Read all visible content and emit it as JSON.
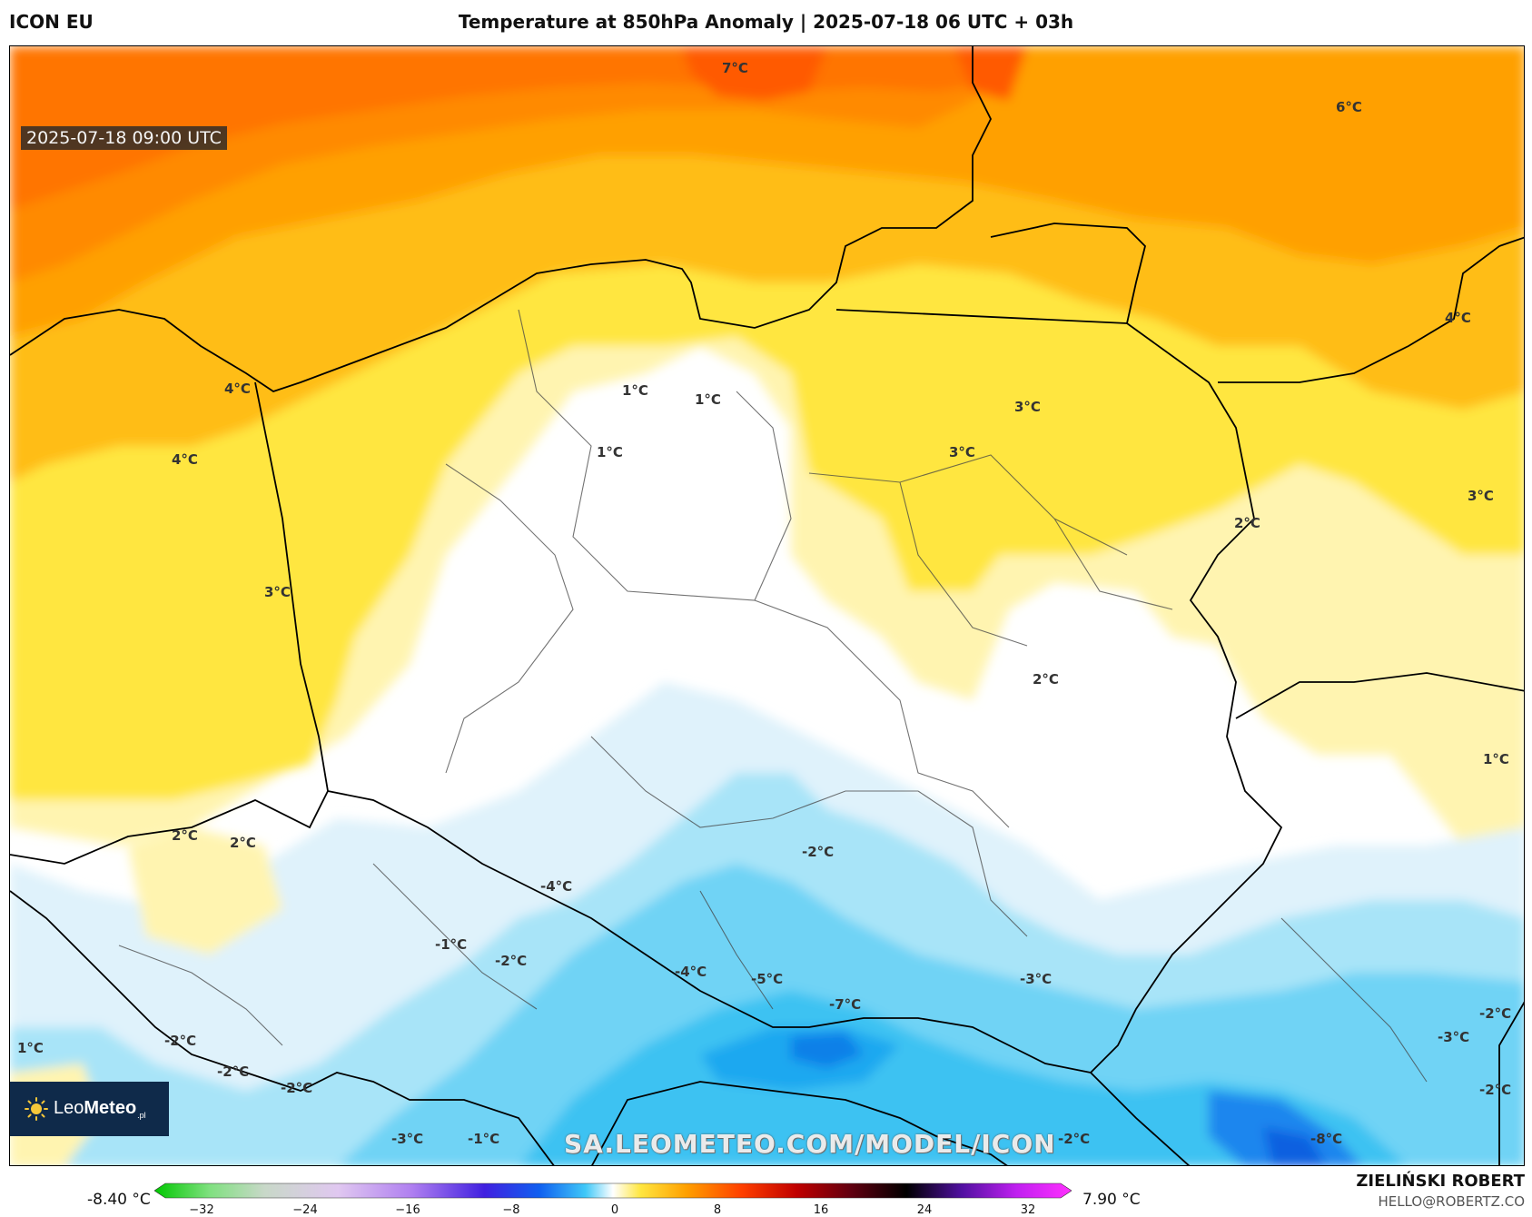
{
  "header": {
    "model": "ICON EU",
    "title": "Temperature at 850hPa Anomaly | 2025-07-18 06 UTC + 03h"
  },
  "map": {
    "valid_time": "2025-07-18 09:00 UTC",
    "watermark_url": "SA.LEOMETEO.COM/MODEL/ICON",
    "logo_text_plain": "Leo",
    "logo_text_bold": "Meteo",
    "logo_suffix": ".pl",
    "contour_labels": [
      {
        "text": "7°C"
      },
      {
        "text": "6°C"
      },
      {
        "text": "4°C"
      },
      {
        "text": "4°C"
      },
      {
        "text": "4°C"
      },
      {
        "text": "1°C"
      },
      {
        "text": "1°C"
      },
      {
        "text": "1°C"
      },
      {
        "text": "3°C"
      },
      {
        "text": "3°C"
      },
      {
        "text": "3°C"
      },
      {
        "text": "3°C"
      },
      {
        "text": "2°C"
      },
      {
        "text": "2°C"
      },
      {
        "text": "1°C"
      },
      {
        "text": "2°C"
      },
      {
        "text": "2°C"
      },
      {
        "text": "-2°C"
      },
      {
        "text": "-4°C"
      },
      {
        "text": "-1°C"
      },
      {
        "text": "-2°C"
      },
      {
        "text": "-4°C"
      },
      {
        "text": "-5°C"
      },
      {
        "text": "-7°C"
      },
      {
        "text": "-3°C"
      },
      {
        "text": "-2°C"
      },
      {
        "text": "-3°C"
      },
      {
        "text": "-2°C"
      },
      {
        "text": "1°C"
      },
      {
        "text": "-2°C"
      },
      {
        "text": "-2°C"
      },
      {
        "text": "-2°C"
      },
      {
        "text": "-3°C"
      },
      {
        "text": "-1°C"
      },
      {
        "text": "-2°C"
      },
      {
        "text": "-8°C"
      }
    ]
  },
  "colorbar": {
    "min_label": "-8.40 °C",
    "max_label": "7.90 °C",
    "ticks": [
      "−32",
      "−24",
      "−16",
      "−8",
      "0",
      "8",
      "16",
      "24",
      "32"
    ]
  },
  "footer": {
    "author": "ZIELIŃSKI ROBERT",
    "email": "HELLO@ROBERTZ.CO"
  },
  "colors": {
    "warm_max": "#ff6a00",
    "warm_mid": "#ffa800",
    "warm_low": "#ffe640",
    "pale_yellow": "#fff4b0",
    "neutral": "#ffffff",
    "cool_light": "#dff2fb",
    "cool_mid": "#6fd3f5",
    "cool_deep": "#1a9ff0"
  }
}
